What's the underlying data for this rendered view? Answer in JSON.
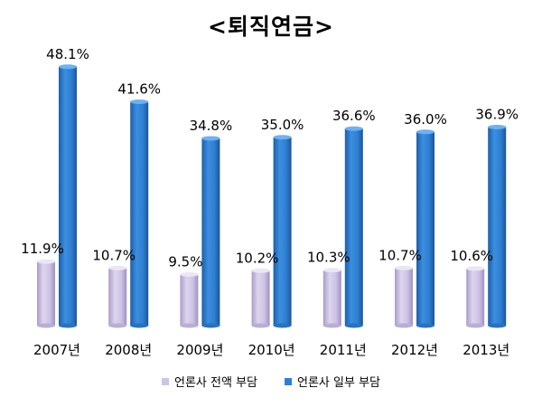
{
  "chart_data": {
    "type": "bar",
    "title": "<퇴직연금>",
    "categories": [
      "2007년",
      "2008년",
      "2009년",
      "2010년",
      "2011년",
      "2012년",
      "2013년"
    ],
    "series": [
      {
        "name": "언론사 전액 부담",
        "values": [
          11.9,
          10.7,
          9.5,
          10.2,
          10.3,
          10.7,
          10.6
        ],
        "labels": [
          "11.9%",
          "10.7%",
          "9.5%",
          "10.2%",
          "10.3%",
          "10.7%",
          "10.6%"
        ],
        "color": "#cdc3e4"
      },
      {
        "name": "언론사 일부 부담",
        "values": [
          48.1,
          41.6,
          34.8,
          35.0,
          36.6,
          36.0,
          36.9
        ],
        "labels": [
          "48.1%",
          "41.6%",
          "34.8%",
          "35.0%",
          "36.6%",
          "36.0%",
          "36.9%"
        ],
        "color": "#2f7fd1"
      }
    ],
    "ylim": [
      0,
      60
    ],
    "legend_position": "bottom",
    "grid": false
  }
}
